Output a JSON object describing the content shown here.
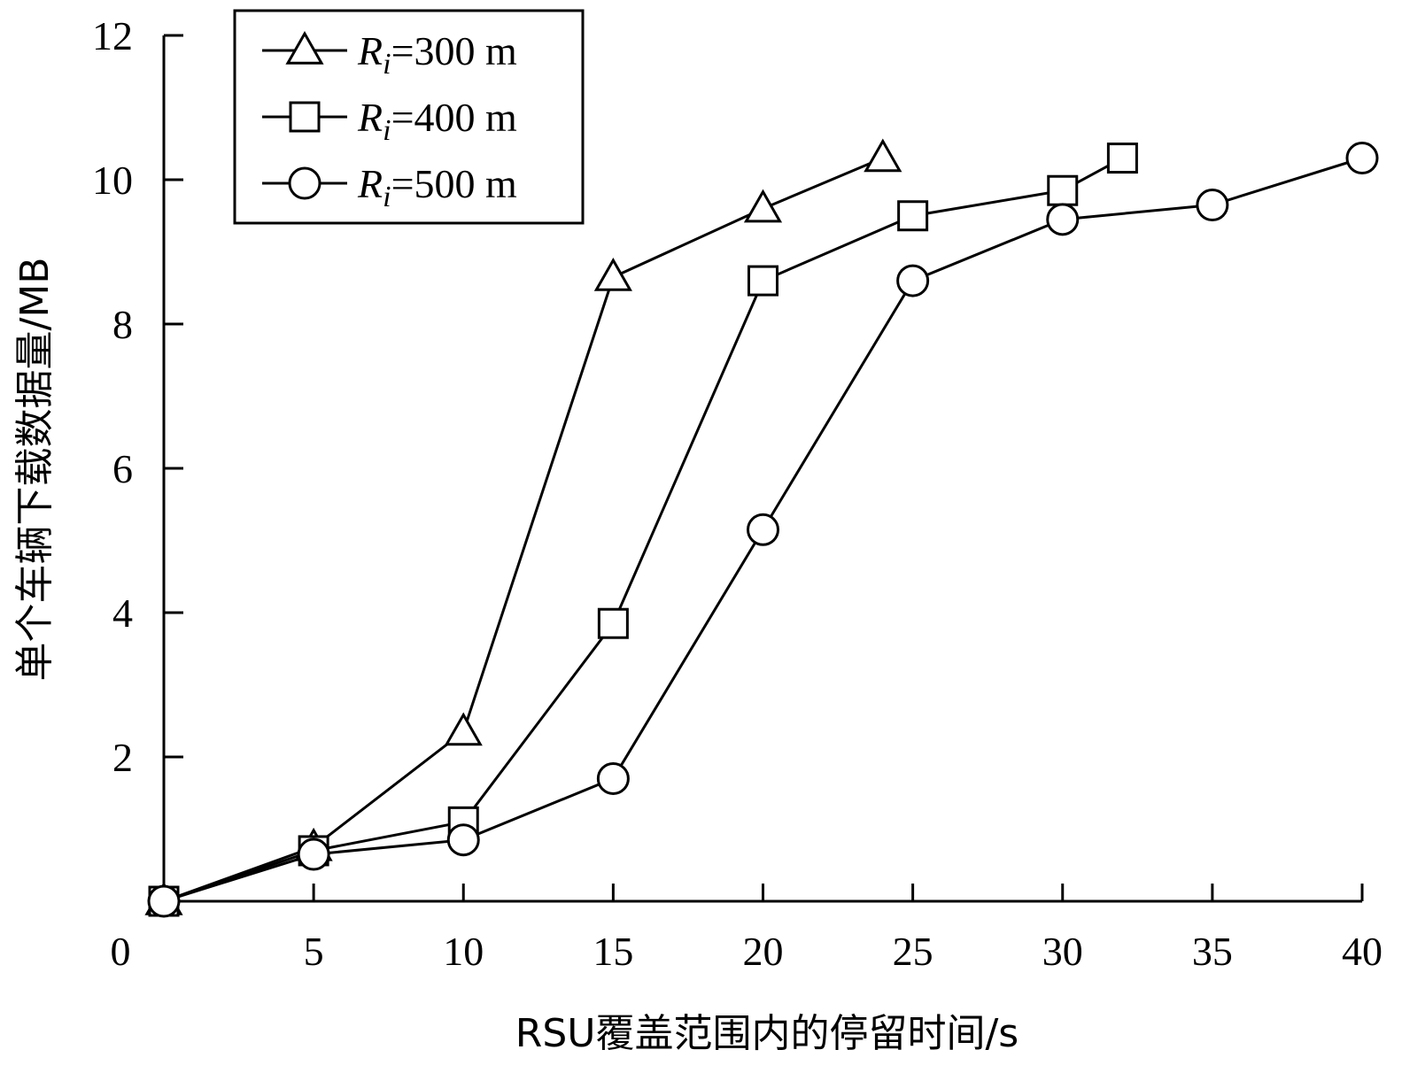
{
  "chart_data": {
    "type": "line",
    "xlabel": "RSU覆盖范围内的停留时间/s",
    "ylabel": "单个车辆下载数据量/MB",
    "xlim": [
      0,
      40
    ],
    "ylim": [
      0,
      12
    ],
    "x_ticks": [
      "0",
      "5",
      "10",
      "15",
      "20",
      "25",
      "30",
      "35",
      "40"
    ],
    "y_ticks": [
      "2",
      "4",
      "6",
      "8",
      "10",
      "12"
    ],
    "grid": false,
    "legend_position": "top-left",
    "series": [
      {
        "name": "Ri=300 m",
        "legend_symbol": "R",
        "legend_subscript": "i",
        "legend_rest": "=300 m",
        "marker": "triangle",
        "x": [
          0,
          5,
          10,
          15,
          20,
          24
        ],
        "y": [
          0,
          0.75,
          2.35,
          8.65,
          9.6,
          10.3
        ]
      },
      {
        "name": "Ri=400 m",
        "legend_symbol": "R",
        "legend_subscript": "i",
        "legend_rest": "=400 m",
        "marker": "square",
        "x": [
          0,
          5,
          10,
          15,
          20,
          25,
          30,
          32
        ],
        "y": [
          0,
          0.7,
          1.1,
          3.85,
          8.6,
          9.5,
          9.85,
          10.3
        ]
      },
      {
        "name": "Ri=500 m",
        "legend_symbol": "R",
        "legend_subscript": "i",
        "legend_rest": "=500 m",
        "marker": "circle",
        "x": [
          0,
          5,
          10,
          15,
          20,
          25,
          30,
          35,
          40
        ],
        "y": [
          0,
          0.65,
          0.85,
          1.7,
          5.15,
          8.6,
          9.45,
          9.65,
          10.3
        ]
      }
    ]
  }
}
